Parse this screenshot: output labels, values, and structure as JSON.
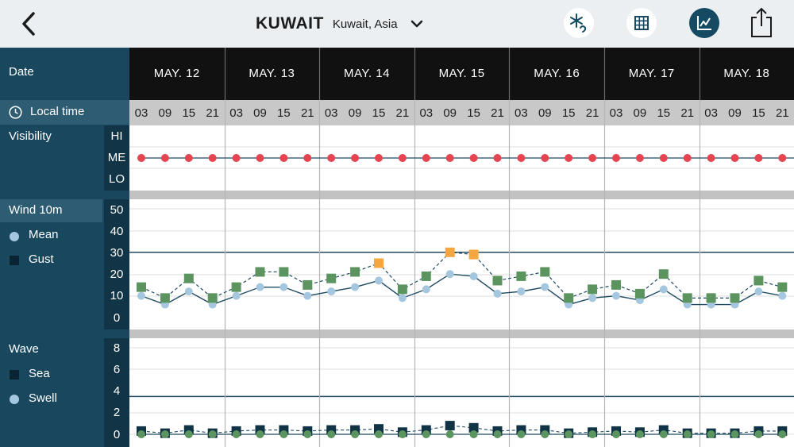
{
  "header": {
    "city": "KUWAIT",
    "region": "Kuwait, Asia",
    "icons": [
      "back-arrow-icon",
      "chevron-down-icon",
      "weather-toggle-icon",
      "table-view-icon",
      "chart-view-icon",
      "share-icon"
    ]
  },
  "sidebar": {
    "date_label": "Date",
    "local_time_label": "Local time",
    "visibility": {
      "label": "Visibility",
      "hi": "HI",
      "me": "ME",
      "lo": "LO"
    },
    "wind": {
      "label": "Wind 10m",
      "mean": "Mean",
      "gust": "Gust",
      "ticks": [
        "50",
        "40",
        "30",
        "20",
        "10",
        "0"
      ]
    },
    "wave": {
      "label": "Wave",
      "sea": "Sea",
      "swell": "Swell",
      "ticks": [
        "8",
        "6",
        "4",
        "2",
        "0"
      ]
    }
  },
  "colors": {
    "visibility_dot": "#e54450",
    "mean": "#a4c6df",
    "gust_normal": "#5c9460",
    "gust_high": "#f5a640",
    "sea": "#103446",
    "swell": "#5c9460",
    "sidebar": "#18475e",
    "date_header": "#111111",
    "accent": "#154a62"
  },
  "chart_data": {
    "type": "line",
    "days": [
      "MAY. 12",
      "MAY. 13",
      "MAY. 14",
      "MAY. 15",
      "MAY. 16",
      "MAY. 17",
      "MAY. 18"
    ],
    "hours": [
      "03",
      "09",
      "15",
      "21"
    ],
    "visibility": [
      "ME",
      "ME",
      "ME",
      "ME",
      "ME",
      "ME",
      "ME",
      "ME",
      "ME",
      "ME",
      "ME",
      "ME",
      "ME",
      "ME",
      "ME",
      "ME",
      "ME",
      "ME",
      "ME",
      "ME",
      "ME",
      "ME",
      "ME",
      "ME",
      "ME",
      "ME",
      "ME",
      "ME"
    ],
    "wind": {
      "ylim": [
        0,
        50
      ],
      "threshold": 30,
      "series": [
        {
          "name": "Mean",
          "values": [
            10,
            6,
            12,
            6,
            10,
            14,
            14,
            10,
            12,
            14,
            17,
            9,
            13,
            20,
            19,
            11,
            12,
            14,
            6,
            9,
            10,
            8,
            13,
            6,
            6,
            6,
            12,
            10
          ]
        },
        {
          "name": "Gust",
          "values": [
            14,
            9,
            18,
            9,
            14,
            21,
            21,
            15,
            18,
            21,
            25,
            13,
            19,
            30,
            29,
            17,
            19,
            21,
            9,
            13,
            15,
            11,
            20,
            9,
            9,
            9,
            17,
            14
          ]
        }
      ]
    },
    "wave": {
      "ylim": [
        0,
        8
      ],
      "threshold": 3.5,
      "series": [
        {
          "name": "Sea",
          "values": [
            0.3,
            0.1,
            0.4,
            0.1,
            0.3,
            0.4,
            0.4,
            0.3,
            0.4,
            0.4,
            0.5,
            0.2,
            0.4,
            0.8,
            0.6,
            0.3,
            0.4,
            0.4,
            0.1,
            0.2,
            0.3,
            0.2,
            0.4,
            0.1,
            0.1,
            0.1,
            0.3,
            0.3
          ]
        },
        {
          "name": "Swell",
          "values": [
            0,
            0,
            0,
            0,
            0,
            0,
            0,
            0,
            0,
            0,
            0,
            0,
            0,
            0,
            0,
            0,
            0,
            0,
            0,
            0,
            0,
            0,
            0,
            0,
            0,
            0,
            0,
            0
          ]
        }
      ]
    }
  }
}
